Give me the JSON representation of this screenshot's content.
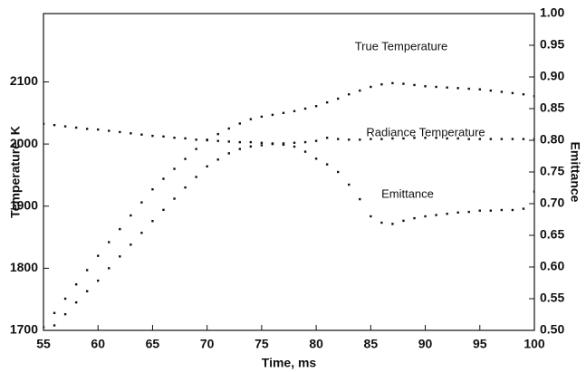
{
  "chart_data": {
    "type": "scatter",
    "xlabel": "Time, ms",
    "ylabel": "Temperature, K",
    "y2label": "Emittance",
    "annotations": [
      "True Temperature",
      "Radiance Temperature",
      "Emittance"
    ],
    "x": [
      55,
      56,
      57,
      58,
      59,
      60,
      61,
      62,
      63,
      64,
      65,
      66,
      67,
      68,
      69,
      70,
      71,
      72,
      73,
      74,
      75,
      76,
      77,
      78,
      79,
      80,
      81,
      82,
      83,
      84,
      85,
      86,
      87,
      88,
      89,
      90,
      91,
      92,
      93,
      94,
      95,
      96,
      97,
      98,
      99,
      100
    ],
    "xlim": [
      55,
      100
    ],
    "xticks": [
      55,
      60,
      65,
      70,
      75,
      80,
      85,
      90,
      95,
      100
    ],
    "ylim": [
      1700,
      2210
    ],
    "yticks": [
      1700,
      1800,
      1900,
      2000,
      2100
    ],
    "y2lim": [
      0.5,
      1.0
    ],
    "y2ticks": [
      {
        "value": 0.5,
        "label": "0.50"
      },
      0.55,
      {
        "value": 0.6,
        "label": "0.60"
      },
      0.65,
      {
        "value": 0.7,
        "label": "0.70"
      },
      0.75,
      {
        "value": 0.8,
        "label": "0.80"
      },
      0.85,
      {
        "value": 0.9,
        "label": "0.90"
      },
      0.95,
      {
        "value": 1.0,
        "label": "1.00"
      }
    ],
    "series": [
      {
        "name": "True Temperature",
        "color": "#111111",
        "axis": "y",
        "values": [
          1705,
          1728,
          1751,
          1774,
          1797,
          1820,
          1842,
          1863,
          1885,
          1906,
          1927,
          1944,
          1960,
          1976,
          1992,
          2007,
          2016,
          2025,
          2033,
          2040,
          2044,
          2047,
          2050,
          2053,
          2057,
          2061,
          2067,
          2073,
          2080,
          2086,
          2092,
          2096,
          2098,
          2097,
          2095,
          2093,
          2092,
          2091,
          2090,
          2089,
          2088,
          2086,
          2084,
          2082,
          2080,
          2077
        ]
      },
      {
        "name": "Radiance Temperature",
        "color": "#111111",
        "axis": "y",
        "values": [
          1690,
          1708,
          1726,
          1745,
          1763,
          1780,
          1800,
          1819,
          1838,
          1857,
          1876,
          1894,
          1912,
          1930,
          1947,
          1964,
          1975,
          1985,
          1992,
          1996,
          1998,
          2000,
          2001,
          2002,
          2003,
          2005,
          2010,
          2008,
          2007,
          2007,
          2008,
          2008,
          2009,
          2009,
          2010,
          2010,
          2010,
          2009,
          2009,
          2008,
          2008,
          2008,
          2008,
          2008,
          2008,
          2008
        ]
      },
      {
        "name": "Emittance",
        "color": "#111111",
        "axis": "y2",
        "values": [
          0.826,
          0.824,
          0.822,
          0.82,
          0.818,
          0.817,
          0.815,
          0.813,
          0.811,
          0.809,
          0.807,
          0.806,
          0.804,
          0.803,
          0.801,
          0.8,
          0.799,
          0.798,
          0.797,
          0.797,
          0.796,
          0.795,
          0.793,
          0.79,
          0.782,
          0.771,
          0.762,
          0.75,
          0.73,
          0.707,
          0.68,
          0.67,
          0.668,
          0.673,
          0.677,
          0.68,
          0.682,
          0.684,
          0.686,
          0.687,
          0.689,
          0.689,
          0.69,
          0.69,
          0.692,
          0.719
        ]
      }
    ]
  }
}
